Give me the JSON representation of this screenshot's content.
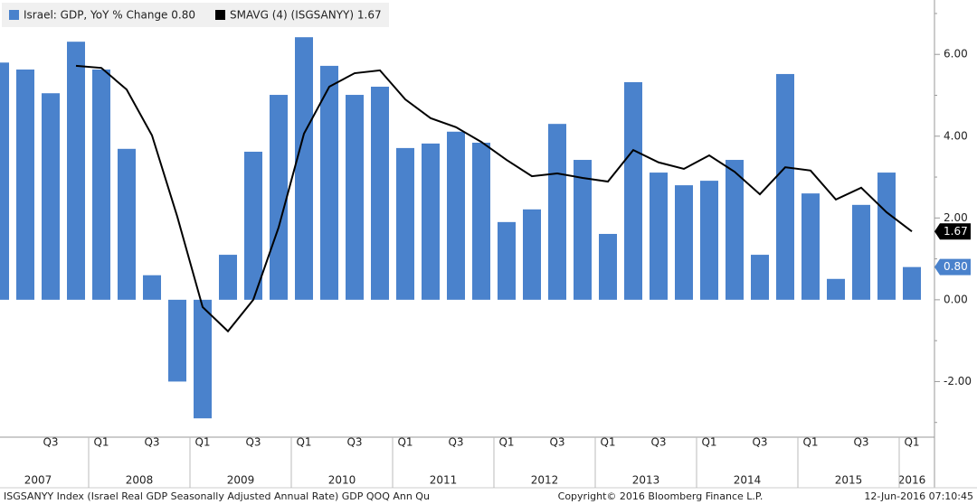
{
  "chart_data": {
    "type": "bar",
    "legend": [
      "Israel: GDP, YoY % Change 0.80",
      "SMAVG (4) (ISGSANYY) 1.67"
    ],
    "categories": [
      null,
      null,
      "Q3",
      null,
      "Q1",
      null,
      "Q3",
      null,
      "Q1",
      null,
      "Q3",
      null,
      "Q1",
      null,
      "Q3",
      null,
      "Q1",
      null,
      "Q3",
      null,
      "Q1",
      null,
      "Q3",
      null,
      "Q1",
      null,
      "Q3",
      null,
      "Q1",
      null,
      "Q3",
      null,
      "Q1",
      null,
      "Q3",
      null,
      "Q1"
    ],
    "years": [
      "2007",
      "2008",
      "2009",
      "2010",
      "2011",
      "2012",
      "2013",
      "2014",
      "2015",
      "2016"
    ],
    "series": [
      {
        "name": "Israel: GDP, YoY % Change",
        "type": "bar",
        "color": "#4a82cc",
        "values": [
          5.8,
          5.63,
          5.05,
          6.31,
          5.63,
          3.69,
          0.6,
          -2.0,
          -2.9,
          1.1,
          3.62,
          5.01,
          6.42,
          5.72,
          5.01,
          5.21,
          3.71,
          3.82,
          4.11,
          3.84,
          1.9,
          2.21,
          4.3,
          3.42,
          1.61,
          5.32,
          3.11,
          2.8,
          2.91,
          3.42,
          1.1,
          5.52,
          2.6,
          0.51,
          2.32,
          3.11,
          0.8
        ],
        "last_label": "0.80"
      },
      {
        "name": "SMAVG (4) (ISGSANYY)",
        "type": "line",
        "color": "#000000",
        "values": [
          null,
          null,
          null,
          5.72,
          5.67,
          5.14,
          4.02,
          2.03,
          -0.18,
          -0.77,
          0.0,
          1.77,
          4.06,
          5.21,
          5.54,
          5.61,
          4.9,
          4.44,
          4.22,
          3.86,
          3.42,
          3.02,
          3.09,
          2.98,
          2.89,
          3.66,
          3.36,
          3.2,
          3.53,
          3.13,
          2.58,
          3.24,
          3.16,
          2.45,
          2.74,
          2.14,
          1.67
        ],
        "last_label": "1.67"
      }
    ],
    "ylim": [
      -3.36,
      7.33
    ],
    "yticks": [
      {
        "value": -2,
        "label": "-2.00"
      },
      {
        "value": 0,
        "label": "0.00"
      },
      {
        "value": 2,
        "label": "2.00"
      },
      {
        "value": 4,
        "label": "4.00"
      },
      {
        "value": 6,
        "label": "6.00"
      }
    ],
    "yticks_minor": [
      -3,
      -1,
      1,
      3,
      5,
      7
    ],
    "footer": [
      "ISGSANYY Index (Israel Real GDP Seasonally Adjusted Annual Rate) GDP QOQ Ann  Qu",
      "Copyright© 2016 Bloomberg Finance L.P.",
      "12-Jun-2016 07:10:45"
    ]
  }
}
